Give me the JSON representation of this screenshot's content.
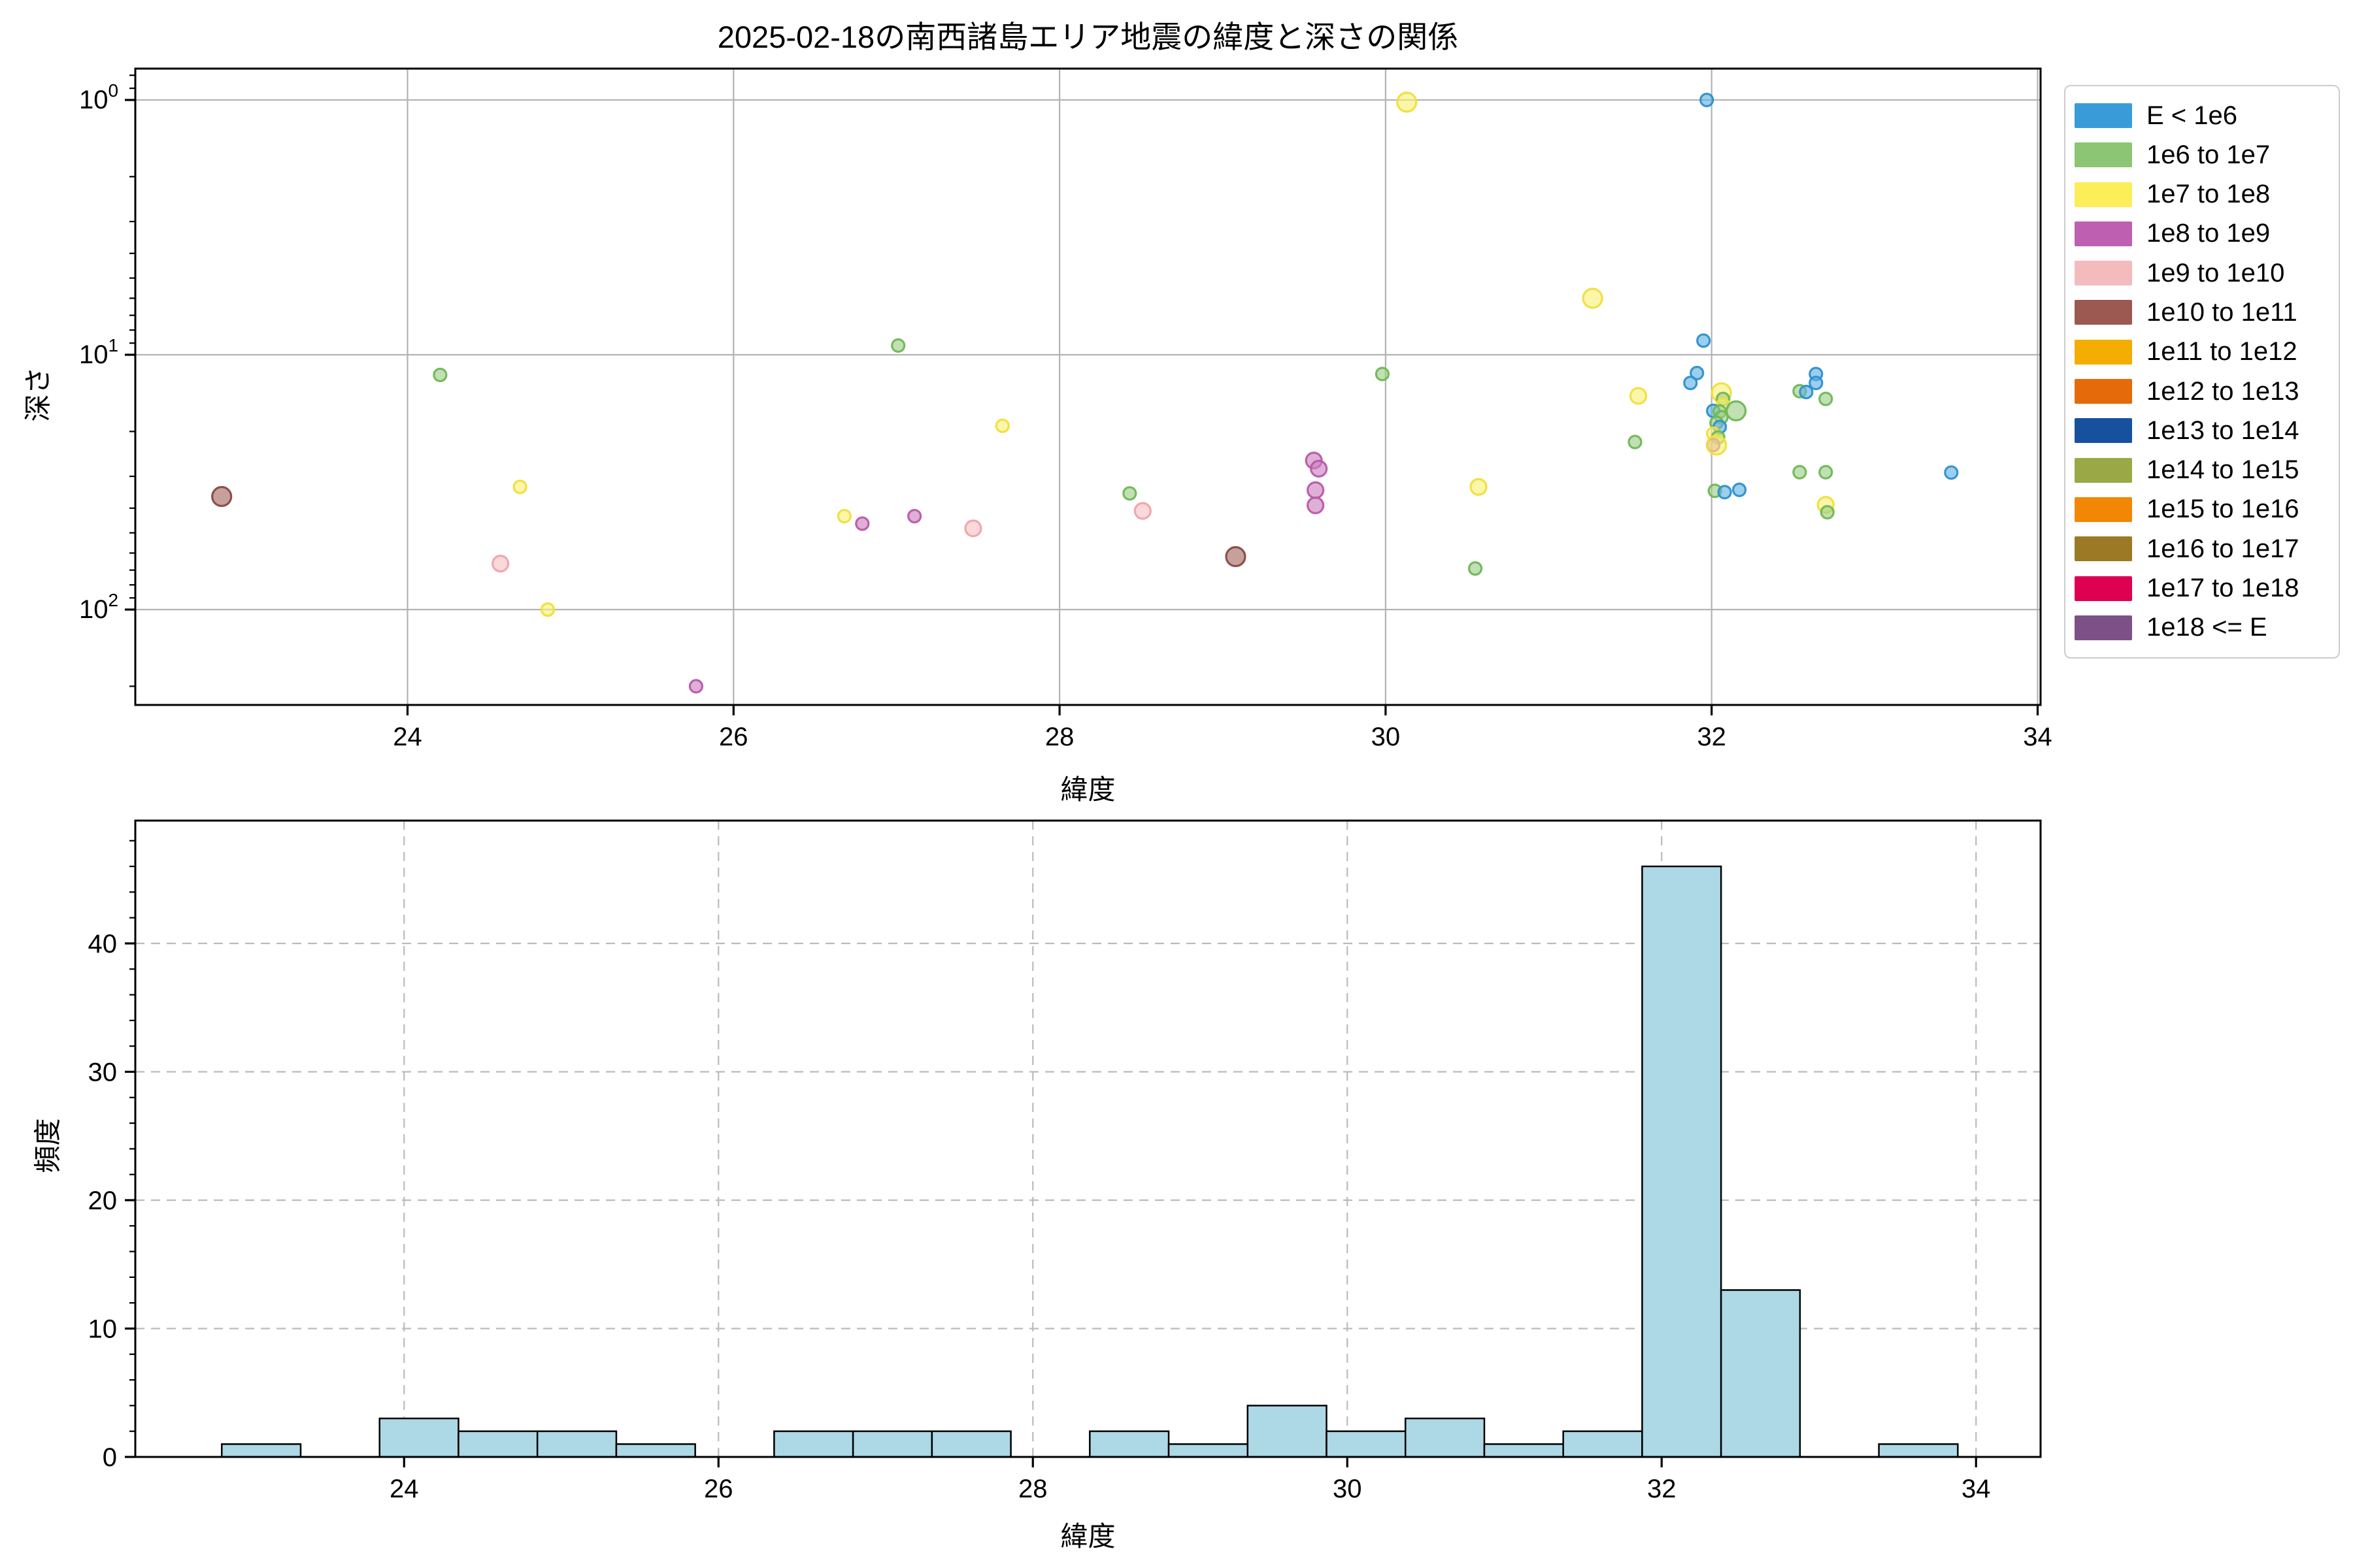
{
  "title": "2025-02-18の南西諸島エリア地震の緯度と深さの関係",
  "legend": {
    "entries": [
      {
        "label": "E < 1e6",
        "color": "#399CD9",
        "bin": "blue"
      },
      {
        "label": "1e6 to 1e7",
        "color": "#8CC573",
        "bin": "green"
      },
      {
        "label": "1e7 to 1e8",
        "color": "#FBEE58",
        "bin": "yellow"
      },
      {
        "label": "1e8 to 1e9",
        "color": "#BF5FB2",
        "bin": "magenta"
      },
      {
        "label": "1e9 to 1e10",
        "color": "#F4BBBE",
        "bin": "pink"
      },
      {
        "label": "1e10 to 1e11",
        "color": "#9B5951",
        "bin": "brown"
      },
      {
        "label": "1e11 to 1e12",
        "color": "#F3AE01",
        "bin": "gold"
      },
      {
        "label": "1e12 to 1e13",
        "color": "#E56B0A",
        "bin": "orange"
      },
      {
        "label": "1e13 to 1e14",
        "color": "#17519E",
        "bin": "darkblue"
      },
      {
        "label": "1e14 to 1e15",
        "color": "#9AA846",
        "bin": "olive"
      },
      {
        "label": "1e15 to 1e16",
        "color": "#F28705",
        "bin": "orange2"
      },
      {
        "label": "1e16 to 1e17",
        "color": "#9C7A25",
        "bin": "darkkhaki"
      },
      {
        "label": "1e17 to 1e18",
        "color": "#DE0051",
        "bin": "crimson"
      },
      {
        "label": "1e18 <= E",
        "color": "#7C5187",
        "bin": "purple"
      }
    ]
  },
  "chart_data": [
    {
      "type": "scatter",
      "xlabel": "緯度",
      "ylabel": "深さ",
      "x_ticks": [
        24,
        26,
        28,
        30,
        32,
        34
      ],
      "y_tick_exponents": [
        0,
        1,
        2
      ],
      "y_minor_ticks": [
        0.8,
        0.9,
        2,
        3,
        4,
        5,
        6,
        7,
        8,
        9,
        20,
        30,
        40,
        50,
        60,
        70,
        80,
        90,
        200
      ],
      "xlim": [
        22.33,
        34.02
      ],
      "ylim_depth_top_to_bottom": [
        0.75,
        237
      ],
      "y_scale": "log, depth increasing downward",
      "grid": "solid gray both axes at major ticks",
      "legend_position": "outside upper right",
      "points": [
        {
          "x": 22.86,
          "y": 36,
          "bin": "brown",
          "size": "l"
        },
        {
          "x": 24.2,
          "y": 12,
          "bin": "green",
          "size": "r"
        },
        {
          "x": 24.57,
          "y": 66,
          "bin": "pink",
          "size": "m"
        },
        {
          "x": 24.69,
          "y": 33,
          "bin": "yellow",
          "size": "r"
        },
        {
          "x": 24.86,
          "y": 100,
          "bin": "yellow",
          "size": "r"
        },
        {
          "x": 25.77,
          "y": 200,
          "bin": "magenta",
          "size": "r"
        },
        {
          "x": 26.68,
          "y": 43,
          "bin": "yellow",
          "size": "r"
        },
        {
          "x": 26.79,
          "y": 46,
          "bin": "magenta",
          "size": "r"
        },
        {
          "x": 27.01,
          "y": 9.2,
          "bin": "green",
          "size": "r"
        },
        {
          "x": 27.11,
          "y": 43,
          "bin": "magenta",
          "size": "r"
        },
        {
          "x": 27.47,
          "y": 48,
          "bin": "pink",
          "size": "m"
        },
        {
          "x": 27.65,
          "y": 19,
          "bin": "yellow",
          "size": "r"
        },
        {
          "x": 28.43,
          "y": 35,
          "bin": "green",
          "size": "r"
        },
        {
          "x": 28.51,
          "y": 41,
          "bin": "pink",
          "size": "m"
        },
        {
          "x": 29.08,
          "y": 62,
          "bin": "brown",
          "size": "l"
        },
        {
          "x": 29.56,
          "y": 26,
          "bin": "magenta",
          "size": "m"
        },
        {
          "x": 29.59,
          "y": 28,
          "bin": "magenta",
          "size": "m"
        },
        {
          "x": 29.57,
          "y": 34,
          "bin": "magenta",
          "size": "m"
        },
        {
          "x": 29.57,
          "y": 39,
          "bin": "magenta",
          "size": "m"
        },
        {
          "x": 29.98,
          "y": 11.9,
          "bin": "green",
          "size": "r"
        },
        {
          "x": 30.13,
          "y": 1.02,
          "bin": "yellow",
          "size": "l"
        },
        {
          "x": 30.55,
          "y": 69,
          "bin": "green",
          "size": "r"
        },
        {
          "x": 30.57,
          "y": 33,
          "bin": "yellow",
          "size": "m"
        },
        {
          "x": 31.27,
          "y": 6.0,
          "bin": "yellow",
          "size": "l"
        },
        {
          "x": 31.53,
          "y": 22,
          "bin": "green",
          "size": "r"
        },
        {
          "x": 31.55,
          "y": 14.5,
          "bin": "yellow",
          "size": "m"
        },
        {
          "x": 31.97,
          "y": 1.0,
          "bin": "blue",
          "size": "r"
        },
        {
          "x": 31.95,
          "y": 8.8,
          "bin": "blue",
          "size": "r"
        },
        {
          "x": 31.91,
          "y": 11.8,
          "bin": "blue",
          "size": "r"
        },
        {
          "x": 31.87,
          "y": 12.9,
          "bin": "blue",
          "size": "r"
        },
        {
          "x": 32.06,
          "y": 14.1,
          "bin": "yellow",
          "size": "l"
        },
        {
          "x": 32.07,
          "y": 14.9,
          "bin": "green",
          "size": "r"
        },
        {
          "x": 32.07,
          "y": 15.7,
          "bin": "yellow",
          "size": "r"
        },
        {
          "x": 32.15,
          "y": 16.6,
          "bin": "green",
          "size": "l"
        },
        {
          "x": 32.01,
          "y": 16.6,
          "bin": "blue",
          "size": "r"
        },
        {
          "x": 32.05,
          "y": 16.7,
          "bin": "green",
          "size": "r"
        },
        {
          "x": 32.06,
          "y": 17.6,
          "bin": "green",
          "size": "r"
        },
        {
          "x": 32.03,
          "y": 18.5,
          "bin": "green",
          "size": "r"
        },
        {
          "x": 32.05,
          "y": 19.2,
          "bin": "blue",
          "size": "r"
        },
        {
          "x": 32.01,
          "y": 20.4,
          "bin": "yellow",
          "size": "r"
        },
        {
          "x": 32.04,
          "y": 21.1,
          "bin": "green",
          "size": "r"
        },
        {
          "x": 32.01,
          "y": 22.6,
          "bin": "magenta",
          "size": "r"
        },
        {
          "x": 32.03,
          "y": 22.6,
          "bin": "yellow",
          "size": "l"
        },
        {
          "x": 32.02,
          "y": 34.2,
          "bin": "green",
          "size": "r"
        },
        {
          "x": 32.08,
          "y": 34.6,
          "bin": "blue",
          "size": "r"
        },
        {
          "x": 32.17,
          "y": 33.9,
          "bin": "blue",
          "size": "r"
        },
        {
          "x": 32.54,
          "y": 13.9,
          "bin": "green",
          "size": "r"
        },
        {
          "x": 32.58,
          "y": 14.0,
          "bin": "blue",
          "size": "r"
        },
        {
          "x": 32.64,
          "y": 11.9,
          "bin": "blue",
          "size": "r"
        },
        {
          "x": 32.64,
          "y": 12.9,
          "bin": "blue",
          "size": "r"
        },
        {
          "x": 32.7,
          "y": 14.9,
          "bin": "green",
          "size": "r"
        },
        {
          "x": 32.54,
          "y": 28.9,
          "bin": "green",
          "size": "r"
        },
        {
          "x": 32.7,
          "y": 28.9,
          "bin": "green",
          "size": "r"
        },
        {
          "x": 32.7,
          "y": 38.8,
          "bin": "yellow",
          "size": "m"
        },
        {
          "x": 32.71,
          "y": 41.5,
          "bin": "green",
          "size": "r"
        },
        {
          "x": 33.47,
          "y": 29,
          "bin": "blue",
          "size": "r"
        }
      ]
    },
    {
      "type": "histogram",
      "xlabel": "緯度",
      "ylabel": "頻度",
      "x_ticks": [
        24,
        26,
        28,
        30,
        32,
        34
      ],
      "y_ticks": [
        0,
        10,
        20,
        30,
        40
      ],
      "xlim": [
        22.29,
        34.41
      ],
      "ylim": [
        0,
        49.6
      ],
      "grid": "dashed gray both axes at major ticks",
      "bin_start": 22.84,
      "bin_width": 0.502,
      "counts": [
        1,
        0,
        3,
        2,
        2,
        1,
        0,
        2,
        2,
        2,
        0,
        2,
        1,
        4,
        2,
        3,
        1,
        2,
        46,
        13,
        0,
        1
      ],
      "bar_fill": "#ADD8E6",
      "bar_edge": "#000000"
    }
  ],
  "style": {
    "dot_fill": {
      "blue": "#5FB0E2",
      "green": "#9BCD84",
      "yellow": "#F9F075",
      "magenta": "#CC7FBF",
      "pink": "#F6C2C5",
      "brown": "#A4655D"
    },
    "dot_edge": {
      "blue": "#2E8FCE",
      "green": "#6FB755",
      "yellow": "#EFDF3B",
      "magenta": "#BB58A8",
      "pink": "#F0A3A9",
      "brown": "#874A42"
    },
    "size_radius": {
      "r": 9.5,
      "m": 12,
      "l": 14.5
    },
    "grid_color_scatter": "#b3b3b3",
    "grid_color_hist": "#bbbbbb",
    "spine_color": "#000000"
  }
}
